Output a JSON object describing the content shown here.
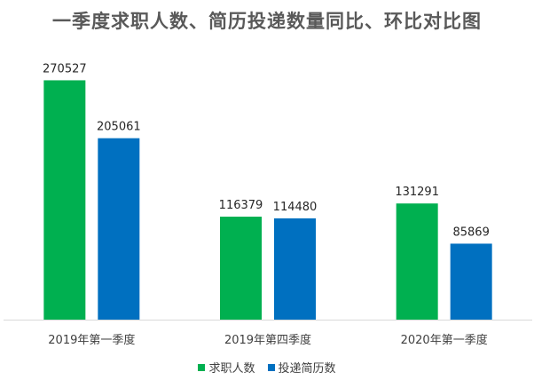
{
  "chart_data": {
    "type": "bar",
    "title": "一季度求职人数、简历投递数量同比、环比对比图",
    "categories": [
      "2019年第一季度",
      "2019年第四季度",
      "2020年第一季度"
    ],
    "series": [
      {
        "name": "求职人数",
        "values": [
          270527,
          116379,
          131291
        ],
        "color": "#00B050"
      },
      {
        "name": "投递简历数",
        "values": [
          205061,
          114480,
          85869
        ],
        "color": "#0070C0"
      }
    ],
    "ylim": [
      0,
      280000
    ],
    "grid": false,
    "legend": "bottom",
    "data_labels": true,
    "axis_color": "#D9D9D9"
  }
}
